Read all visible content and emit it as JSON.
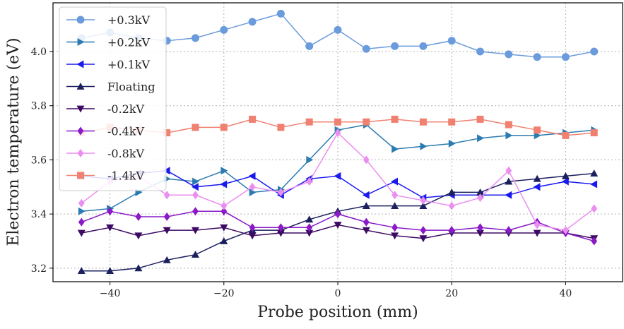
{
  "chart_data": {
    "type": "line",
    "xlabel": "Probe position (mm)",
    "ylabel": "Electron temperature (eV)",
    "xlim": [
      -50,
      50
    ],
    "ylim": [
      3.15,
      4.18
    ],
    "xticks": [
      -40,
      -20,
      0,
      20,
      40
    ],
    "yticks": [
      3.2,
      3.4,
      3.6,
      3.8,
      4.0
    ],
    "xtick_labels": [
      "−40",
      "−20",
      "0",
      "20",
      "40"
    ],
    "ytick_labels": [
      "3.2",
      "3.4",
      "3.6",
      "3.8",
      "4.0"
    ],
    "grid": true,
    "legend_position": "top-left",
    "x": [
      -45,
      -40,
      -35,
      -30,
      -25,
      -20,
      -15,
      -10,
      -5,
      0,
      5,
      10,
      15,
      20,
      25,
      30,
      35,
      40,
      45
    ],
    "series": [
      {
        "name": "+0.3kV",
        "color": "#6a9bdc",
        "marker": "circle",
        "values": [
          4.05,
          4.07,
          4.05,
          4.04,
          4.05,
          4.08,
          4.11,
          4.14,
          4.02,
          4.08,
          4.01,
          4.02,
          4.02,
          4.04,
          4.0,
          3.99,
          3.98,
          3.98,
          4.0
        ]
      },
      {
        "name": "+0.2kV",
        "color": "#2b7bb0",
        "marker": "triangle-right",
        "values": [
          3.41,
          3.42,
          3.48,
          3.53,
          3.52,
          3.56,
          3.48,
          3.49,
          3.6,
          3.71,
          3.73,
          3.64,
          3.65,
          3.66,
          3.68,
          3.69,
          3.69,
          3.7,
          3.71
        ]
      },
      {
        "name": "+0.1kV",
        "color": "#1a1aee",
        "marker": "triangle-left",
        "values": [
          3.54,
          3.53,
          3.55,
          3.56,
          3.5,
          3.51,
          3.54,
          3.47,
          3.53,
          3.54,
          3.47,
          3.52,
          3.46,
          3.47,
          3.47,
          3.47,
          3.5,
          3.52,
          3.51
        ]
      },
      {
        "name": "Floating",
        "color": "#1b1f5e",
        "marker": "triangle-up",
        "values": [
          3.19,
          3.19,
          3.2,
          3.23,
          3.25,
          3.3,
          3.34,
          3.34,
          3.38,
          3.41,
          3.43,
          3.43,
          3.43,
          3.48,
          3.48,
          3.52,
          3.53,
          3.54,
          3.55
        ]
      },
      {
        "name": "-0.2kV",
        "color": "#3d0a63",
        "marker": "triangle-down",
        "values": [
          3.33,
          3.35,
          3.32,
          3.34,
          3.34,
          3.35,
          3.32,
          3.33,
          3.33,
          3.36,
          3.34,
          3.32,
          3.31,
          3.33,
          3.33,
          3.33,
          3.33,
          3.33,
          3.31
        ]
      },
      {
        "name": "-0.4kV",
        "color": "#8a19c8",
        "marker": "diamond",
        "values": [
          3.37,
          3.41,
          3.39,
          3.39,
          3.41,
          3.41,
          3.35,
          3.35,
          3.35,
          3.4,
          3.37,
          3.35,
          3.34,
          3.34,
          3.35,
          3.34,
          3.37,
          3.33,
          3.3
        ]
      },
      {
        "name": "-0.8kV",
        "color": "#ea8ef0",
        "marker": "diamond",
        "values": [
          3.44,
          3.52,
          3.54,
          3.47,
          3.47,
          3.43,
          3.5,
          3.48,
          3.52,
          3.7,
          3.6,
          3.47,
          3.45,
          3.43,
          3.46,
          3.56,
          3.36,
          3.34,
          3.42
        ]
      },
      {
        "name": "-1.4kV",
        "color": "#f08070",
        "marker": "square",
        "values": [
          3.7,
          3.72,
          3.71,
          3.7,
          3.72,
          3.72,
          3.75,
          3.72,
          3.74,
          3.74,
          3.74,
          3.75,
          3.74,
          3.74,
          3.75,
          3.73,
          3.71,
          3.69,
          3.7
        ]
      }
    ]
  }
}
